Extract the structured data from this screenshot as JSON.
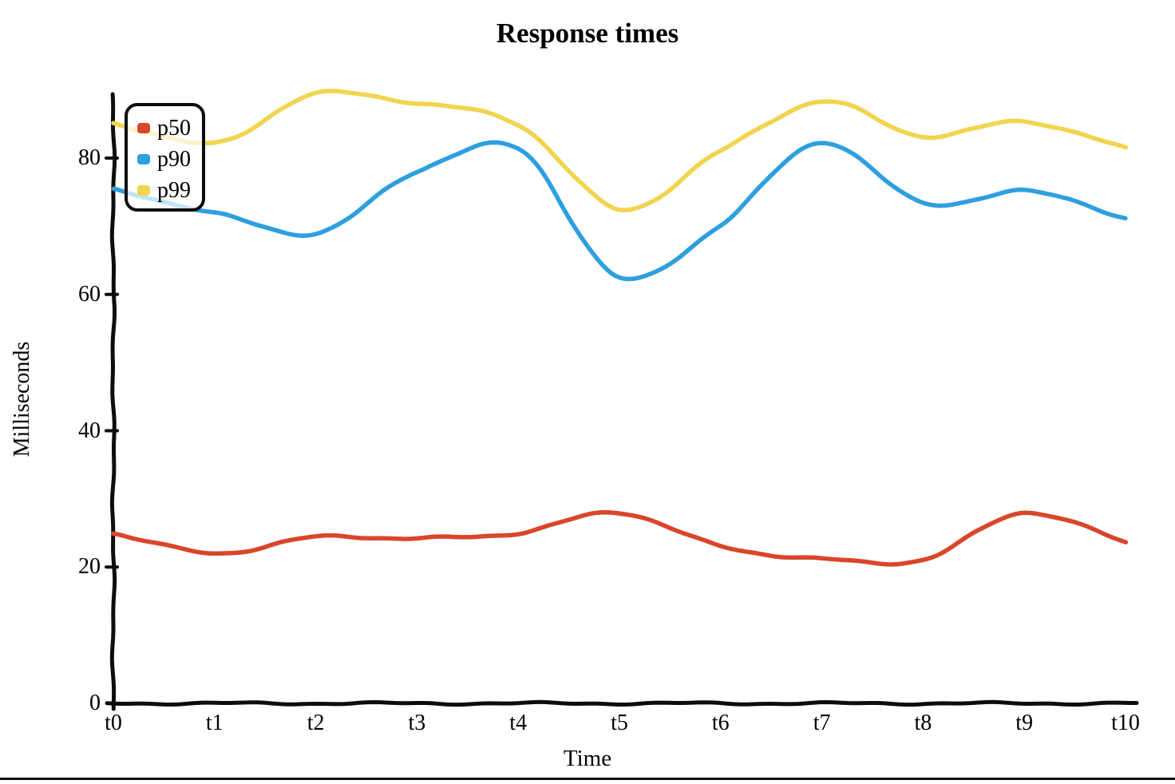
{
  "page": {
    "background": "#ffffff",
    "bottom_separator_color": "#0a0a0a",
    "axis_color": "#0d0d0d",
    "text_color": "#000000"
  },
  "chart_data": {
    "type": "line",
    "style": "hand-drawn-wobbly-lines",
    "title": "Response times",
    "xlabel": "Time",
    "ylabel": "Milliseconds",
    "categories": [
      "t0",
      "t1",
      "t2",
      "t3",
      "t4",
      "t5",
      "t6",
      "t7",
      "t8",
      "t9",
      "t10"
    ],
    "y_ticks": [
      0,
      20,
      40,
      60,
      80
    ],
    "ylim": [
      0,
      90
    ],
    "grid": false,
    "legend_position": "top-left",
    "series": [
      {
        "name": "p50",
        "color": "#d9462b",
        "values": [
          25,
          22,
          24.4,
          24.2,
          25,
          28,
          23,
          21.2,
          21.1,
          28,
          23.5
        ]
      },
      {
        "name": "p90",
        "color": "#2e9fdf",
        "values": [
          75.3,
          72,
          69,
          78,
          81.3,
          62.5,
          70.3,
          82.3,
          73.3,
          75.2,
          71.2
        ]
      },
      {
        "name": "p99",
        "color": "#f1d44f",
        "values": [
          85.2,
          82.2,
          89.4,
          88,
          85,
          72.5,
          81,
          88.3,
          83.2,
          85.4,
          81.4
        ]
      }
    ],
    "legend": [
      {
        "label": "p50"
      },
      {
        "label": "p90"
      },
      {
        "label": "p99"
      }
    ]
  }
}
